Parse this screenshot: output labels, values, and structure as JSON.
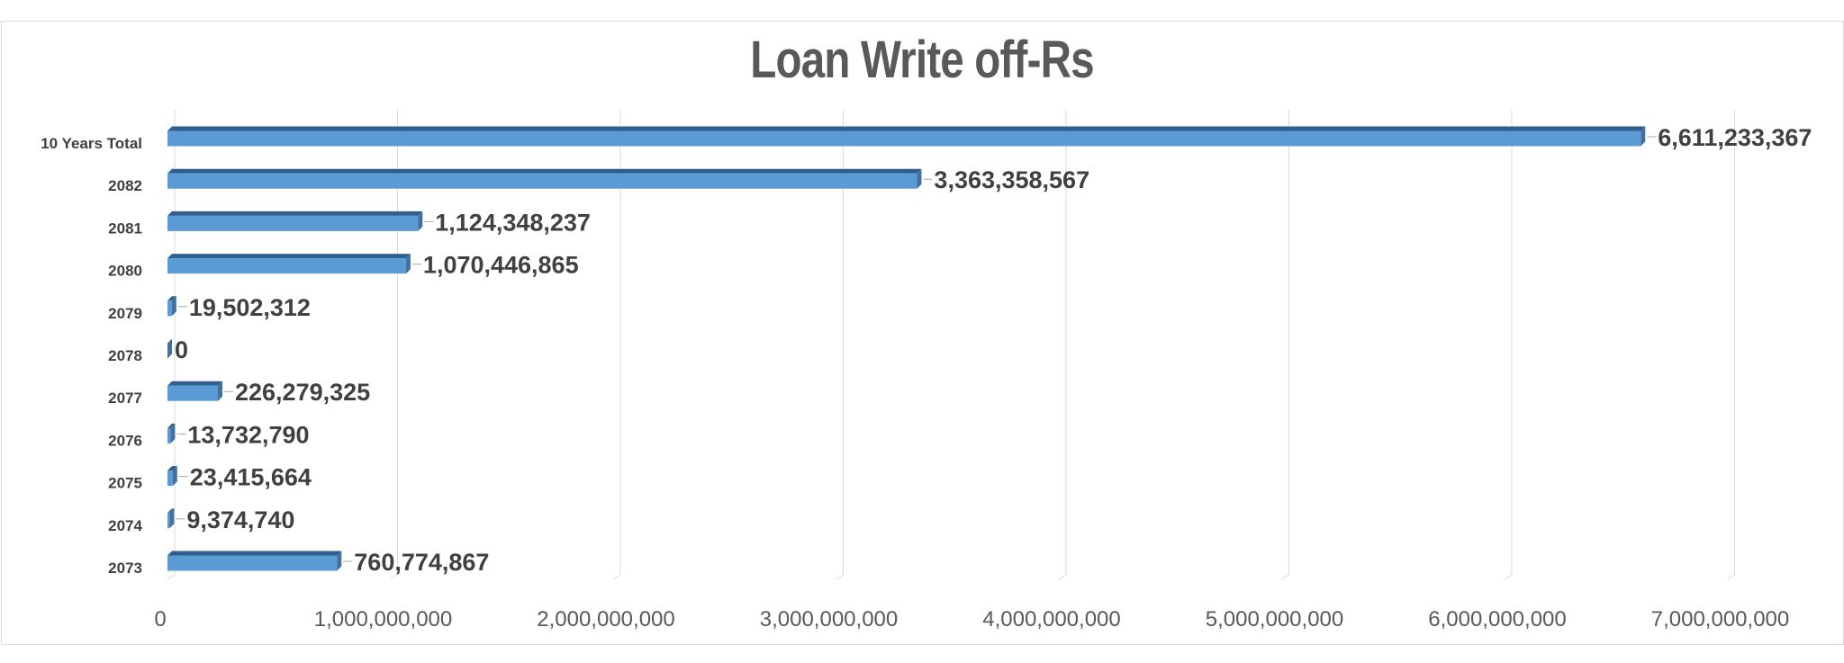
{
  "chart_data": {
    "type": "bar",
    "orientation": "horizontal",
    "title": "Loan Write off-Rs",
    "categories": [
      "10 Years Total",
      "2082",
      "2081",
      "2080",
      "2079",
      "2078",
      "2077",
      "2076",
      "2075",
      "2074",
      "2073"
    ],
    "values": [
      6611233367,
      3363358567,
      1124348237,
      1070446865,
      19502312,
      0,
      226279325,
      13732790,
      23415664,
      9374740,
      760774867
    ],
    "data_labels": [
      "6,611,233,367",
      "3,363,358,567",
      "1,124,348,237",
      "1,070,446,865",
      "19,502,312",
      "0",
      "226,279,325",
      "13,732,790",
      "23,415,664",
      "9,374,740",
      "760,774,867"
    ],
    "x_ticks": [
      0,
      1000000000,
      2000000000,
      3000000000,
      4000000000,
      5000000000,
      6000000000,
      7000000000
    ],
    "x_tick_labels": [
      "0",
      "1,000,000,000",
      "2,000,000,000",
      "3,000,000,000",
      "4,000,000,000",
      "5,000,000,000",
      "6,000,000,000",
      "7,000,000,000"
    ],
    "xlim": [
      0,
      7000000000
    ],
    "xlabel": "",
    "ylabel": "",
    "grid": "vertical",
    "legend": "none",
    "bar_color": "#5b9bd5",
    "bar_side_color": "#41719c",
    "bar_top_color": "#2e5f8f"
  }
}
